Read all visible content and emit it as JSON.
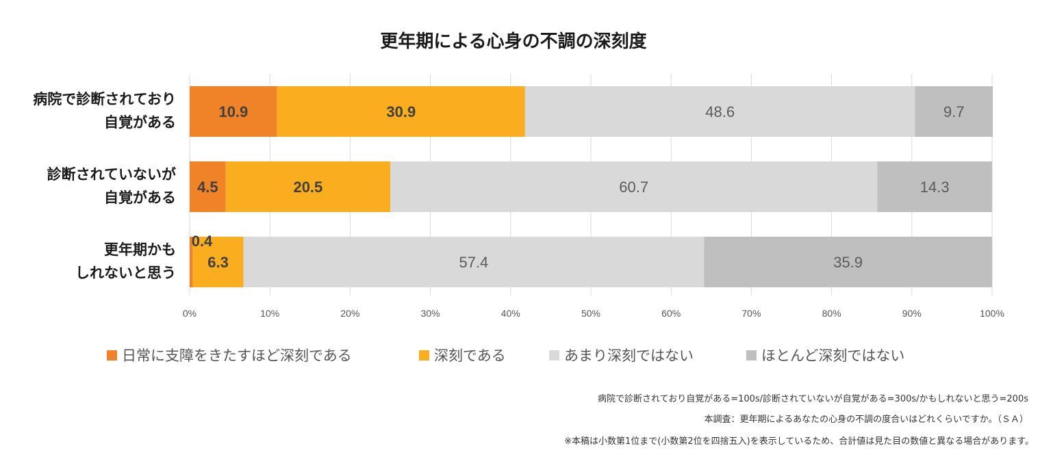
{
  "chart_data": {
    "type": "bar",
    "orientation": "horizontal",
    "stacked": true,
    "title": "更年期による心身の不調の深刻度",
    "categories": [
      [
        "病院で診断されており",
        "自覚がある"
      ],
      [
        "診断されていないが",
        "自覚がある"
      ],
      [
        "更年期かも",
        "しれないと思う"
      ]
    ],
    "series": [
      {
        "name": "日常に支障をきたすほど深刻である",
        "color": "#f08228",
        "label_style": "dark",
        "values": [
          10.9,
          4.5,
          0.4
        ],
        "labels": [
          "10.9",
          "4.5",
          "0.4"
        ]
      },
      {
        "name": "深刻である",
        "color": "#f9ad1f",
        "label_style": "dark",
        "values": [
          30.9,
          20.5,
          6.3
        ],
        "labels": [
          "30.9",
          "20.5",
          "6.3"
        ]
      },
      {
        "name": "あまり深刻ではない",
        "color": "#d9d9d9",
        "label_style": "light",
        "values": [
          48.6,
          60.7,
          57.4
        ],
        "labels": [
          "48.6",
          "60.7",
          "57.4"
        ]
      },
      {
        "name": "ほとんど深刻ではない",
        "color": "#bfbfbf",
        "label_style": "light",
        "values": [
          9.7,
          14.3,
          35.9
        ],
        "labels": [
          "9.7",
          "14.3",
          "35.9"
        ]
      }
    ],
    "xlim": [
      0,
      100
    ],
    "xticks": [
      0,
      10,
      20,
      30,
      40,
      50,
      60,
      70,
      80,
      90,
      100
    ],
    "tick_labels": [
      "0%",
      "10%",
      "20%",
      "30%",
      "40%",
      "50%",
      "60%",
      "70%",
      "80%",
      "90%",
      "100%"
    ],
    "grid": true,
    "legend_position": "bottom"
  },
  "notes": [
    "病院で診断されており自覚がある=100s/診断されていないが自覚がある=300s/かもしれないと思う=200s",
    "本調査：更年期によるあなたの心身の不調の度合いはどれくらいですか。（ＳＡ）",
    "※本稿は小数第1位まで(小数第2位を四捨五入)を表示しているため、合計値は見た目の数値と異なる場合があります。"
  ]
}
